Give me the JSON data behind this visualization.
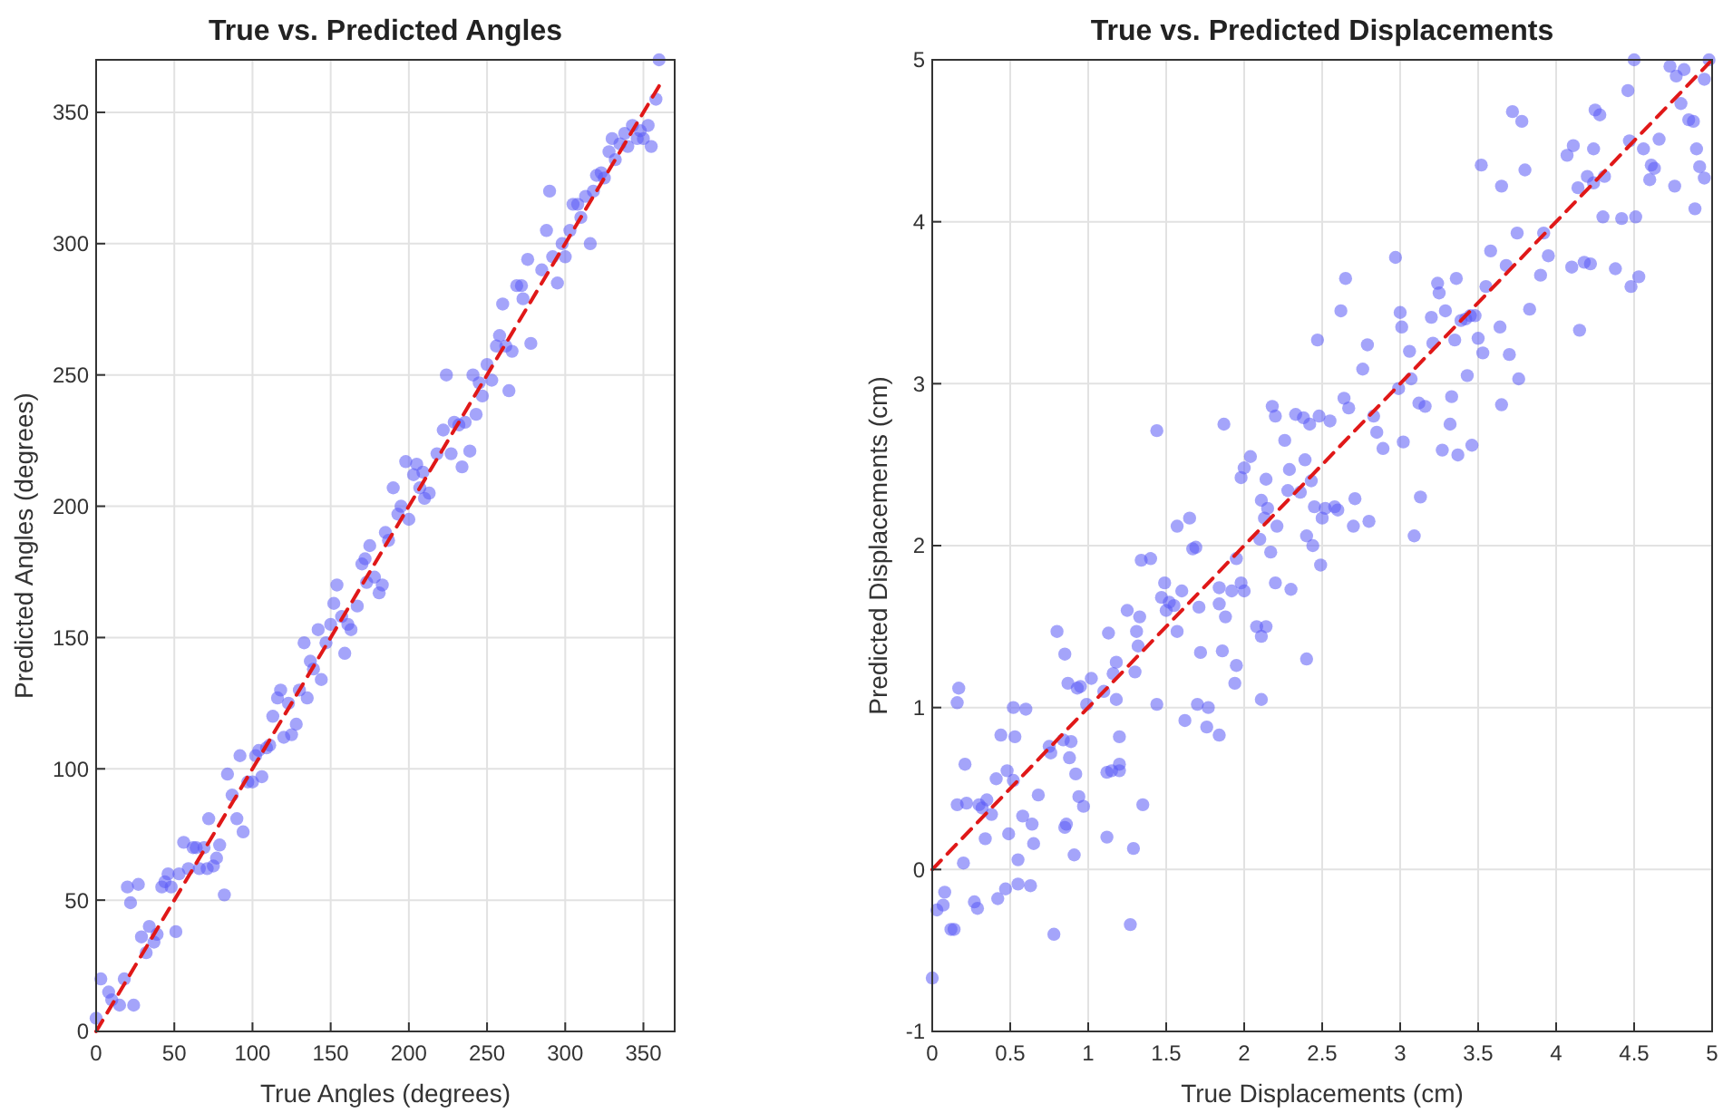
{
  "chart_data": [
    {
      "type": "scatter",
      "title": "True vs. Predicted Angles",
      "xlabel": "True Angles (degrees)",
      "ylabel": "Predicted Angles (degrees)",
      "xlim": [
        0,
        370
      ],
      "ylim": [
        0,
        370
      ],
      "xticks": [
        0,
        50,
        100,
        150,
        200,
        250,
        300,
        350
      ],
      "yticks": [
        0,
        50,
        100,
        150,
        200,
        250,
        300,
        350
      ],
      "grid": true,
      "marker": "circle",
      "series": [
        {
          "color": "#5a5af5",
          "x": [
            0,
            3,
            8,
            10,
            15,
            18,
            20,
            22,
            24,
            27,
            29,
            32,
            34,
            37,
            39,
            42,
            44,
            46,
            48,
            51,
            53,
            56,
            59,
            62,
            64,
            66,
            69,
            71,
            72,
            75,
            77,
            79,
            82,
            84,
            87,
            90,
            92,
            94,
            97,
            100,
            102,
            104,
            106,
            109,
            111,
            113,
            116,
            118,
            120,
            123,
            125,
            128,
            130,
            133,
            135,
            137,
            139,
            142,
            144,
            147,
            150,
            152,
            154,
            157,
            159,
            161,
            163,
            167,
            170,
            172,
            173,
            175,
            178,
            181,
            183,
            185,
            187,
            190,
            193,
            195,
            198,
            200,
            203,
            205,
            207,
            209,
            210,
            213,
            218,
            222,
            224,
            227,
            229,
            232,
            234,
            236,
            239,
            241,
            243,
            245,
            247,
            250,
            253,
            256,
            258,
            260,
            262,
            264,
            266,
            269,
            272,
            273,
            276,
            278,
            285,
            288,
            290,
            292,
            295,
            298,
            300,
            303,
            305,
            308,
            310,
            313,
            316,
            318,
            320,
            323,
            325,
            328,
            330,
            332,
            335,
            338,
            340,
            343,
            346,
            348,
            350,
            353,
            355,
            358,
            360
          ],
          "values": [
            5,
            20,
            15,
            12,
            10,
            20,
            55,
            49,
            10,
            56,
            36,
            30,
            40,
            34,
            37,
            55,
            57,
            60,
            55,
            38,
            60,
            72,
            62,
            70,
            70,
            62,
            70,
            62,
            81,
            63,
            66,
            71,
            52,
            98,
            90,
            81,
            105,
            76,
            95,
            95,
            105,
            107,
            97,
            108,
            109,
            120,
            127,
            130,
            112,
            125,
            113,
            117,
            130,
            148,
            127,
            141,
            138,
            153,
            134,
            148,
            155,
            163,
            170,
            158,
            144,
            155,
            153,
            162,
            178,
            180,
            171,
            185,
            173,
            167,
            170,
            190,
            187,
            207,
            197,
            200,
            217,
            195,
            212,
            216,
            207,
            213,
            203,
            205,
            220,
            229,
            250,
            220,
            232,
            231,
            215,
            232,
            221,
            250,
            235,
            247,
            242,
            254,
            248,
            261,
            265,
            277,
            261,
            244,
            259,
            284,
            284,
            279,
            294,
            262,
            290,
            305,
            320,
            295,
            285,
            300,
            295,
            305,
            315,
            315,
            310,
            318,
            300,
            320,
            326,
            327,
            325,
            335,
            340,
            332,
            338,
            342,
            337,
            345,
            340,
            343,
            340,
            345,
            337,
            355,
            370
          ]
        },
        {
          "type": "line",
          "color": "#e01818",
          "line_style": "dashed",
          "marker": "none",
          "x": [
            0,
            360
          ],
          "values": [
            0,
            360
          ]
        }
      ]
    },
    {
      "type": "scatter",
      "title": "True vs. Predicted Displacements",
      "xlabel": "True Displacements (cm)",
      "ylabel": "Predicted Displacements (cm)",
      "xlim": [
        0,
        5
      ],
      "ylim": [
        -1,
        5
      ],
      "xticks": [
        0,
        0.5,
        1,
        1.5,
        2,
        2.5,
        3,
        3.5,
        4,
        4.5,
        5
      ],
      "yticks": [
        -1,
        0,
        1,
        2,
        3,
        4,
        5
      ],
      "grid": true,
      "marker": "circle",
      "series": [
        {
          "color": "#5a5af5",
          "x": [
            0,
            0.03,
            0.07,
            0.08,
            0.12,
            0.14,
            0.16,
            0.16,
            0.17,
            0.2,
            0.21,
            0.22,
            0.27,
            0.29,
            0.3,
            0.32,
            0.34,
            0.35,
            0.38,
            0.41,
            0.42,
            0.44,
            0.47,
            0.48,
            0.49,
            0.52,
            0.52,
            0.53,
            0.55,
            0.55,
            0.58,
            0.6,
            0.63,
            0.64,
            0.65,
            0.68,
            0.75,
            0.76,
            0.78,
            0.8,
            0.84,
            0.85,
            0.85,
            0.86,
            0.87,
            0.88,
            0.89,
            0.91,
            0.92,
            0.93,
            0.94,
            0.95,
            0.97,
            0.99,
            1.02,
            1.1,
            1.12,
            1.12,
            1.13,
            1.15,
            1.16,
            1.18,
            1.18,
            1.2,
            1.2,
            1.2,
            1.25,
            1.27,
            1.29,
            1.3,
            1.31,
            1.32,
            1.33,
            1.34,
            1.35,
            1.4,
            1.44,
            1.47,
            1.49,
            1.5,
            1.52,
            1.55,
            1.57,
            1.6,
            1.62,
            1.69,
            1.7,
            1.71,
            1.72,
            1.76,
            1.77,
            1.84,
            1.84,
            1.84,
            1.86,
            1.88,
            1.92,
            1.94,
            1.95,
            1.98,
            2,
            2.08,
            2.11,
            2.11,
            2.14,
            2.2,
            2.3,
            2.4,
            2.44,
            2.49,
            1.44,
            1.57,
            1.65,
            1.67,
            1.87,
            1.95,
            1.98,
            2,
            2.04,
            2.1,
            2.11,
            2.13,
            2.14,
            2.15,
            2.17,
            2.18,
            2.2,
            2.21,
            2.26,
            2.28,
            2.29,
            2.33,
            2.36,
            2.38,
            2.39,
            2.4,
            2.42,
            2.43,
            2.45,
            2.47,
            2.48,
            2.5,
            2.52,
            2.55,
            2.58,
            2.6,
            2.62,
            2.64,
            2.65,
            2.67,
            2.7,
            2.71,
            2.76,
            2.79,
            2.8,
            2.83,
            2.85,
            2.89,
            2.97,
            2.99,
            3,
            3.01,
            3.02,
            3.06,
            3.07,
            3.09,
            3.12,
            3.13,
            3.16,
            3.2,
            3.21,
            3.24,
            3.25,
            3.27,
            3.29,
            3.32,
            3.33,
            3.35,
            3.36,
            3.37,
            3.39,
            3.42,
            3.43,
            3.45,
            3.46,
            3.48,
            3.5,
            3.52,
            3.53,
            3.55,
            3.58,
            3.64,
            3.65,
            3.65,
            3.68,
            3.7,
            3.72,
            3.75,
            3.76,
            3.78,
            3.8,
            3.83,
            3.9,
            3.92,
            3.95,
            4.07,
            4.1,
            4.11,
            4.14,
            4.15,
            4.18,
            4.2,
            4.22,
            4.24,
            4.24,
            4.25,
            4.28,
            4.3,
            4.31,
            4.38,
            4.42,
            4.46,
            4.47,
            4.48,
            4.5,
            4.51,
            4.53,
            4.56,
            4.6,
            4.61,
            4.63,
            4.66,
            4.73,
            4.76,
            4.77,
            4.8,
            4.82,
            4.85,
            4.88,
            4.89,
            4.9,
            4.92,
            4.95,
            4.95,
            4.98
          ],
          "values": [
            -0.67,
            -0.25,
            -0.22,
            -0.14,
            -0.37,
            -0.37,
            0.4,
            1.03,
            1.12,
            0.04,
            0.65,
            0.41,
            -0.2,
            -0.24,
            0.4,
            0.38,
            0.19,
            0.43,
            0.34,
            0.56,
            -0.18,
            0.83,
            -0.12,
            0.61,
            0.22,
            1,
            0.55,
            0.82,
            -0.09,
            0.06,
            0.33,
            0.99,
            -0.1,
            0.28,
            0.16,
            0.46,
            0.76,
            0.72,
            -0.4,
            1.47,
            0.8,
            1.33,
            0.26,
            0.28,
            1.15,
            0.69,
            0.79,
            0.09,
            0.59,
            1.12,
            0.45,
            1.13,
            0.39,
            1.02,
            1.18,
            1.1,
            0.6,
            0.2,
            1.46,
            0.61,
            1.21,
            1.28,
            1.05,
            0.82,
            0.65,
            0.61,
            1.6,
            -0.34,
            0.13,
            1.22,
            1.47,
            1.38,
            1.56,
            1.91,
            0.4,
            1.92,
            1.02,
            1.68,
            1.77,
            1.6,
            1.65,
            1.63,
            1.47,
            1.72,
            0.92,
            1.99,
            1.02,
            1.62,
            1.34,
            0.88,
            1,
            0.83,
            1.74,
            1.64,
            1.35,
            1.56,
            1.72,
            1.15,
            1.26,
            1.77,
            1.72,
            1.5,
            1.44,
            1.05,
            1.5,
            1.77,
            1.73,
            1.3,
            2,
            1.88,
            2.71,
            2.12,
            2.17,
            1.98,
            2.75,
            1.92,
            2.42,
            2.48,
            2.55,
            2.04,
            2.28,
            2.17,
            2.41,
            2.23,
            1.96,
            2.86,
            2.8,
            2.12,
            2.65,
            2.34,
            2.47,
            2.81,
            2.33,
            2.79,
            2.53,
            2.06,
            2.75,
            2.4,
            2.24,
            3.27,
            2.8,
            2.17,
            2.23,
            2.77,
            2.24,
            2.22,
            3.45,
            2.91,
            3.65,
            2.85,
            2.12,
            2.29,
            3.09,
            3.24,
            2.15,
            2.8,
            2.7,
            2.6,
            3.78,
            2.97,
            3.44,
            3.35,
            2.64,
            3.2,
            3.03,
            2.06,
            2.88,
            2.3,
            2.86,
            3.41,
            3.25,
            3.62,
            3.56,
            2.59,
            3.45,
            2.75,
            2.92,
            3.27,
            3.65,
            2.56,
            3.39,
            3.4,
            3.05,
            3.42,
            2.62,
            3.42,
            3.28,
            4.35,
            3.19,
            3.6,
            3.82,
            3.35,
            2.87,
            4.22,
            3.73,
            3.18,
            4.68,
            3.93,
            3.03,
            4.62,
            4.32,
            3.46,
            3.67,
            3.93,
            3.79,
            4.41,
            3.72,
            4.47,
            4.21,
            3.33,
            3.75,
            4.28,
            3.74,
            4.45,
            4.24,
            4.69,
            4.66,
            4.03,
            4.28,
            3.71,
            4.02,
            4.81,
            4.5,
            3.6,
            5,
            4.03,
            3.66,
            4.45,
            4.26,
            4.35,
            4.33,
            4.51,
            4.96,
            4.22,
            4.9,
            4.73,
            4.94,
            4.63,
            4.62,
            4.08,
            4.45,
            4.34,
            4.88,
            4.27,
            5
          ]
        },
        {
          "type": "line",
          "color": "#e01818",
          "line_style": "dashed",
          "marker": "none",
          "x": [
            0,
            5
          ],
          "values": [
            0,
            5
          ]
        }
      ]
    }
  ]
}
